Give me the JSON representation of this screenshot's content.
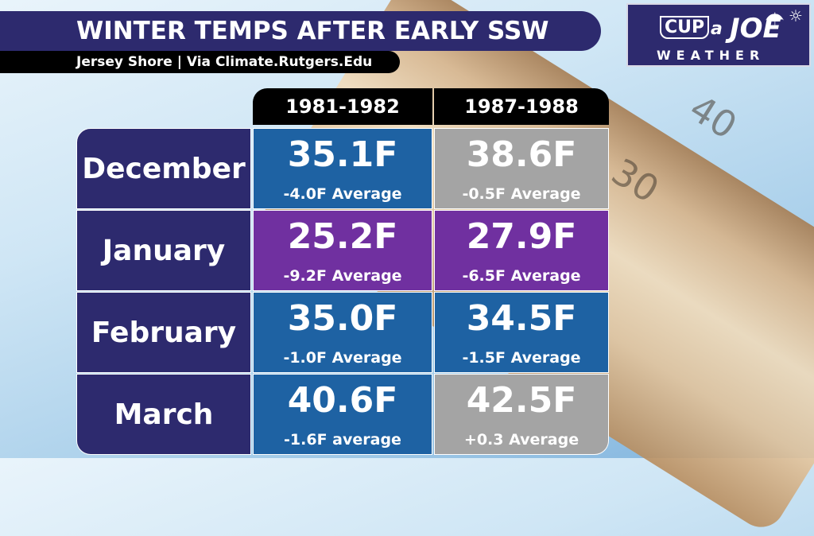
{
  "header": {
    "title": "WINTER TEMPS AFTER EARLY SSW",
    "subtitle": "Jersey Shore | Via Climate.Rutgers.Edu"
  },
  "logo": {
    "cup": "CUP",
    "a": "a",
    "joe": "JOE",
    "weather": "WEATHER"
  },
  "background": {
    "thermometer_numbers": [
      "40",
      "30"
    ]
  },
  "table": {
    "columns": [
      "1981-1982",
      "1987-1988"
    ],
    "rows": [
      {
        "month": "December",
        "cells": [
          {
            "temp": "35.1F",
            "avg": "-4.0F Average",
            "color": "#1e62a3"
          },
          {
            "temp": "38.6F",
            "avg": "-0.5F Average",
            "color": "#a4a4a4"
          }
        ]
      },
      {
        "month": "January",
        "cells": [
          {
            "temp": "25.2F",
            "avg": "-9.2F Average",
            "color": "#7030a0"
          },
          {
            "temp": "27.9F",
            "avg": "-6.5F Average",
            "color": "#7030a0"
          }
        ]
      },
      {
        "month": "February",
        "cells": [
          {
            "temp": "35.0F",
            "avg": "-1.0F Average",
            "color": "#1e62a3"
          },
          {
            "temp": "34.5F",
            "avg": "-1.5F Average",
            "color": "#1e62a3"
          }
        ]
      },
      {
        "month": "March",
        "cells": [
          {
            "temp": "40.6F",
            "avg": "-1.6F average",
            "color": "#1e62a3"
          },
          {
            "temp": "42.5F",
            "avg": "+0.3 Average",
            "color": "#a4a4a4"
          }
        ]
      }
    ]
  },
  "colors": {
    "header_navy": "#2d2a6e",
    "blue_cell": "#1e62a3",
    "purple_cell": "#7030a0",
    "gray_cell": "#a4a4a4"
  }
}
